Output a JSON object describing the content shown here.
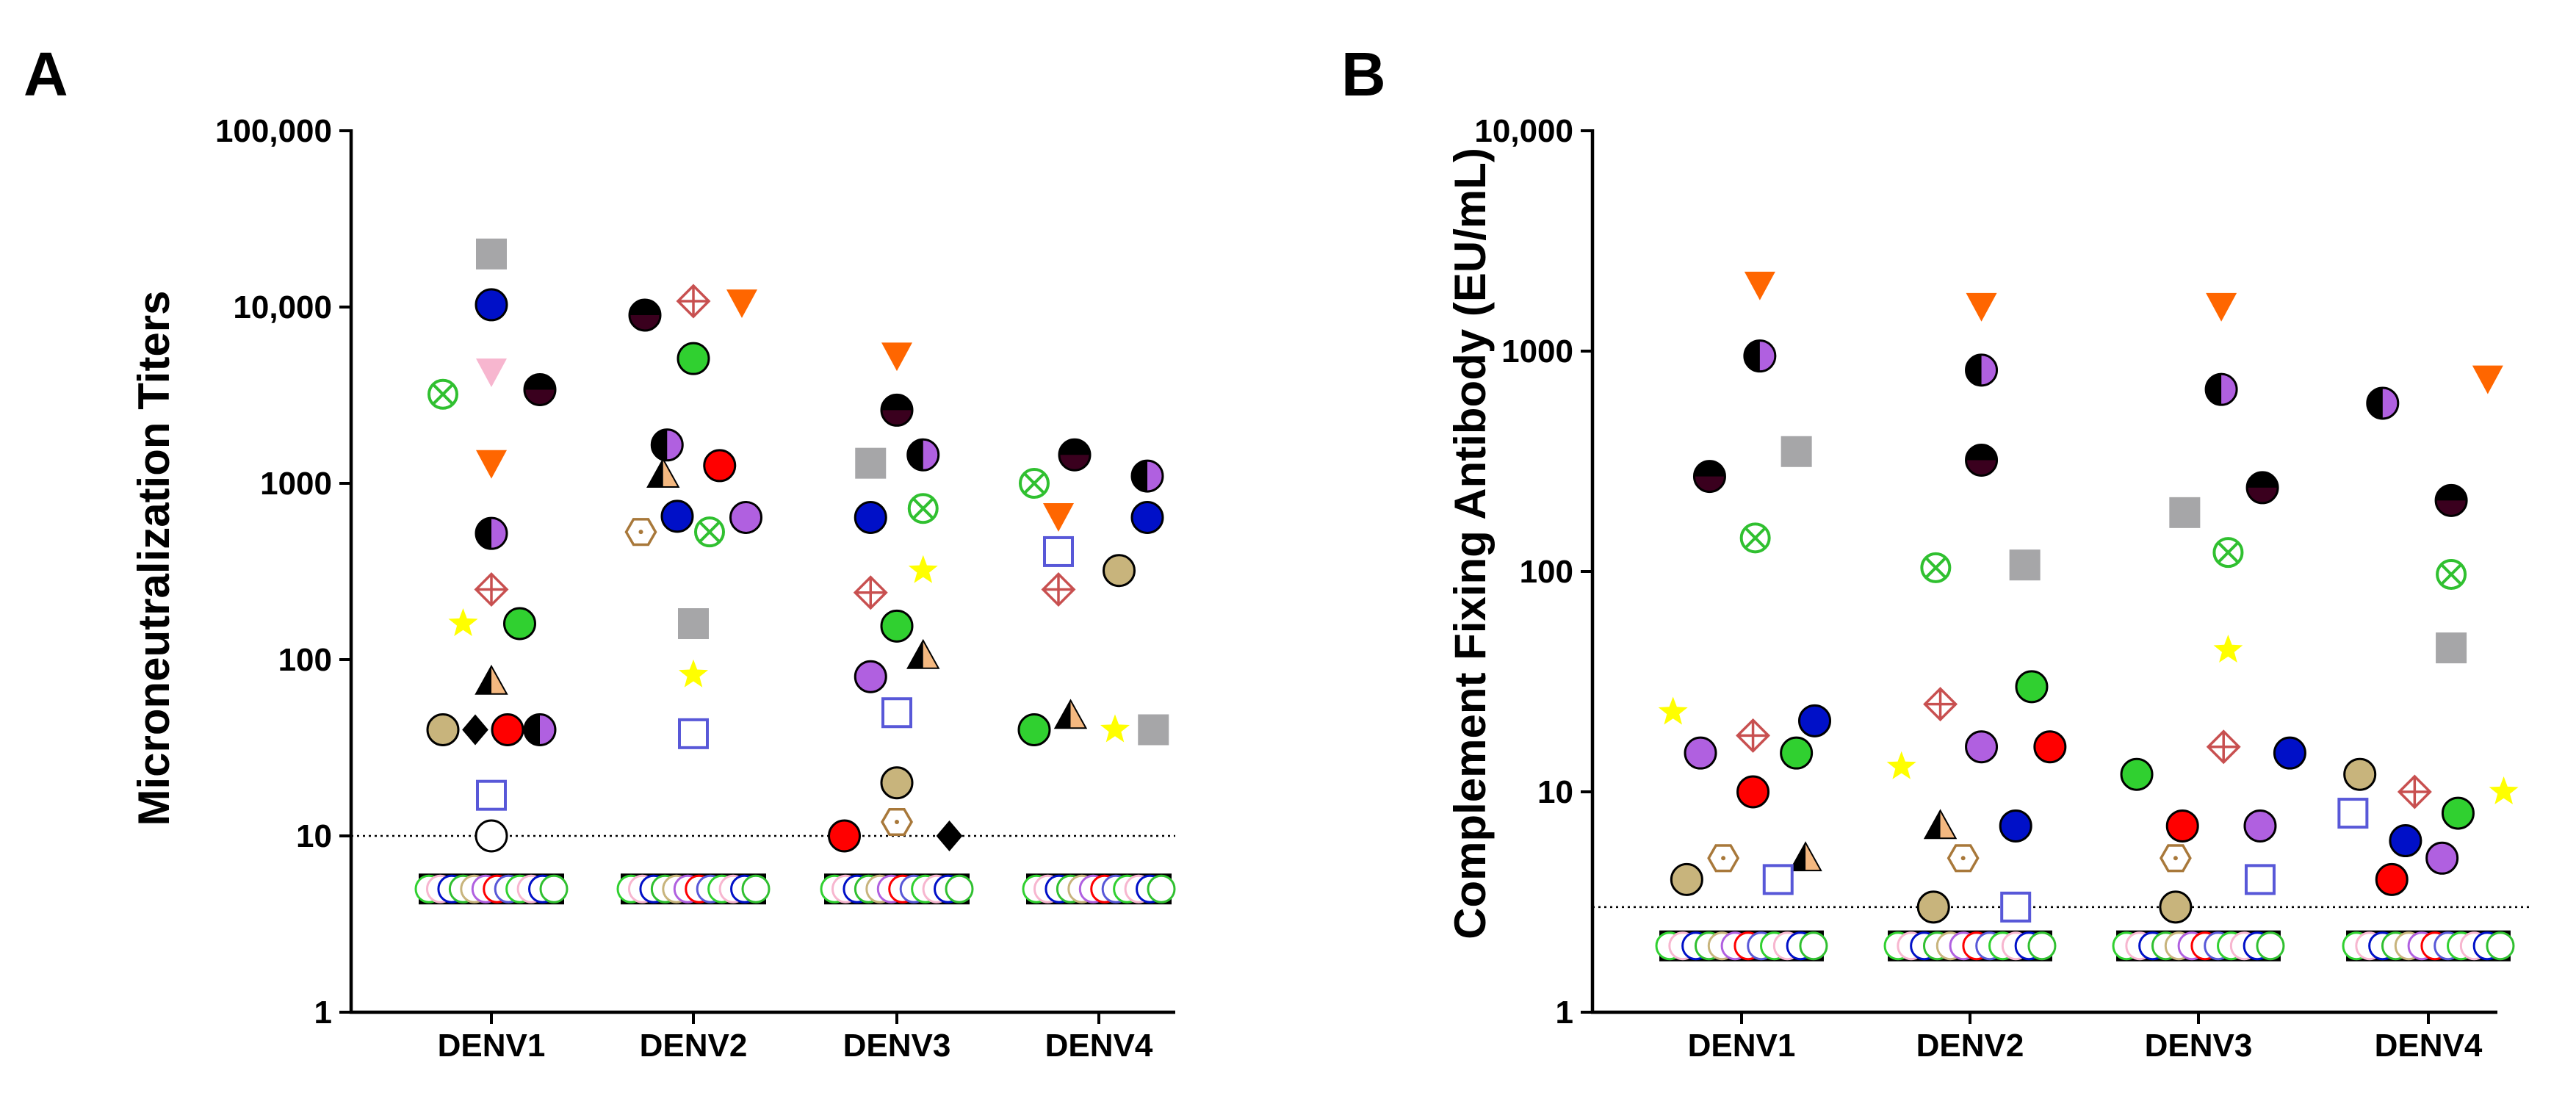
{
  "colors": {
    "orange": "#ff6600",
    "gray": "#a6a6a8",
    "navy": "#0010c8",
    "pink": "#f7b6cf",
    "green": "#30d030",
    "purple": "#b060e0",
    "darkmaroon": "#3a001e",
    "red": "#ff0000",
    "tan": "#c8b47c",
    "yellow": "#ffff00",
    "sqblue": "#5858d8",
    "hexbrown": "#a8783a",
    "diamondred": "#c85050",
    "circlexgreen": "#30c030",
    "triangle": "#f4b880"
  },
  "chart_data": [
    {
      "panel": "A",
      "type": "scatter",
      "ylabel": "Microneutralization Titers",
      "yscale": "log",
      "ylim": [
        1,
        100000
      ],
      "yticks": [
        "1",
        "10",
        "100",
        "1000",
        "10,000",
        "100,000"
      ],
      "categories": [
        "DENV1",
        "DENV2",
        "DENV3",
        "DENV4"
      ],
      "threshold": 10,
      "baseline": 5,
      "points": [
        {
          "cat": 0,
          "dx": 0,
          "y": 20000,
          "m": "square",
          "c": "gray"
        },
        {
          "cat": 0,
          "dx": 0,
          "y": 10300,
          "m": "circle",
          "c": "navy"
        },
        {
          "cat": 0,
          "dx": 0,
          "y": 4300,
          "m": "tridown",
          "c": "pink"
        },
        {
          "cat": 0,
          "dx": -0.24,
          "y": 3200,
          "m": "circlex",
          "c": "circlexgreen"
        },
        {
          "cat": 0,
          "dx": 0.24,
          "y": 3400,
          "m": "halfcircle",
          "c": "darkmaroon"
        },
        {
          "cat": 0,
          "dx": 0,
          "y": 1300,
          "m": "tridown",
          "c": "orange"
        },
        {
          "cat": 0,
          "dx": 0,
          "y": 520,
          "m": "halfcircleV",
          "c": "purple"
        },
        {
          "cat": 0,
          "dx": 0,
          "y": 250,
          "m": "diamondplus",
          "c": "diamondred"
        },
        {
          "cat": 0,
          "dx": -0.14,
          "y": 160,
          "m": "star",
          "c": "yellow"
        },
        {
          "cat": 0,
          "dx": 0.14,
          "y": 160,
          "m": "circle",
          "c": "green"
        },
        {
          "cat": 0,
          "dx": 0,
          "y": 75,
          "m": "halftri",
          "c": "triangle"
        },
        {
          "cat": 0,
          "dx": -0.24,
          "y": 40,
          "m": "circle",
          "c": "tan"
        },
        {
          "cat": 0,
          "dx": -0.08,
          "y": 40,
          "m": "diamond",
          "c": "black"
        },
        {
          "cat": 0,
          "dx": 0.08,
          "y": 40,
          "m": "circle",
          "c": "red"
        },
        {
          "cat": 0,
          "dx": 0.24,
          "y": 40,
          "m": "halfcircleV",
          "c": "purple"
        },
        {
          "cat": 0,
          "dx": 0,
          "y": 17,
          "m": "opensquare",
          "c": "sqblue"
        },
        {
          "cat": 0,
          "dx": 0,
          "y": 10,
          "m": "opencircle",
          "c": "black"
        },
        {
          "cat": 1,
          "dx": -0.24,
          "y": 9000,
          "m": "halfcircle",
          "c": "darkmaroon"
        },
        {
          "cat": 1,
          "dx": 0,
          "y": 10800,
          "m": "diamondplus",
          "c": "diamondred"
        },
        {
          "cat": 1,
          "dx": 0.24,
          "y": 10600,
          "m": "tridown",
          "c": "orange"
        },
        {
          "cat": 1,
          "dx": 0,
          "y": 5100,
          "m": "circle",
          "c": "green"
        },
        {
          "cat": 1,
          "dx": -0.13,
          "y": 1650,
          "m": "halfcircleV",
          "c": "purple"
        },
        {
          "cat": 1,
          "dx": -0.15,
          "y": 1120,
          "m": "halftri",
          "c": "triangle"
        },
        {
          "cat": 1,
          "dx": 0.13,
          "y": 1260,
          "m": "circle",
          "c": "red"
        },
        {
          "cat": 1,
          "dx": -0.08,
          "y": 650,
          "m": "circle",
          "c": "navy"
        },
        {
          "cat": 1,
          "dx": -0.26,
          "y": 530,
          "m": "hexagon",
          "c": "hexbrown"
        },
        {
          "cat": 1,
          "dx": 0.08,
          "y": 530,
          "m": "circlex",
          "c": "circlexgreen"
        },
        {
          "cat": 1,
          "dx": 0.26,
          "y": 640,
          "m": "circle",
          "c": "purple"
        },
        {
          "cat": 1,
          "dx": 0,
          "y": 160,
          "m": "square",
          "c": "gray"
        },
        {
          "cat": 1,
          "dx": 0,
          "y": 82,
          "m": "star",
          "c": "yellow"
        },
        {
          "cat": 1,
          "dx": 0,
          "y": 38,
          "m": "opensquare",
          "c": "sqblue"
        },
        {
          "cat": 2,
          "dx": 0,
          "y": 5300,
          "m": "tridown",
          "c": "orange"
        },
        {
          "cat": 2,
          "dx": 0,
          "y": 2600,
          "m": "halfcircle",
          "c": "darkmaroon"
        },
        {
          "cat": 2,
          "dx": -0.13,
          "y": 1300,
          "m": "square",
          "c": "gray"
        },
        {
          "cat": 2,
          "dx": 0.13,
          "y": 1450,
          "m": "halfcircleV",
          "c": "purple"
        },
        {
          "cat": 2,
          "dx": -0.13,
          "y": 640,
          "m": "circle",
          "c": "navy"
        },
        {
          "cat": 2,
          "dx": 0.13,
          "y": 720,
          "m": "circlex",
          "c": "circlexgreen"
        },
        {
          "cat": 2,
          "dx": 0.13,
          "y": 320,
          "m": "star",
          "c": "yellow"
        },
        {
          "cat": 2,
          "dx": -0.13,
          "y": 240,
          "m": "diamondplus",
          "c": "diamondred"
        },
        {
          "cat": 2,
          "dx": 0,
          "y": 155,
          "m": "circle",
          "c": "green"
        },
        {
          "cat": 2,
          "dx": 0.13,
          "y": 105,
          "m": "halftri",
          "c": "triangle"
        },
        {
          "cat": 2,
          "dx": -0.13,
          "y": 80,
          "m": "circle",
          "c": "purple"
        },
        {
          "cat": 2,
          "dx": 0,
          "y": 50,
          "m": "opensquare",
          "c": "sqblue"
        },
        {
          "cat": 2,
          "dx": 0,
          "y": 20,
          "m": "circle",
          "c": "tan"
        },
        {
          "cat": 2,
          "dx": 0,
          "y": 12,
          "m": "hexagon",
          "c": "hexbrown"
        },
        {
          "cat": 2,
          "dx": -0.26,
          "y": 10,
          "m": "circle",
          "c": "red"
        },
        {
          "cat": 2,
          "dx": 0.26,
          "y": 10,
          "m": "diamond",
          "c": "black"
        },
        {
          "cat": 3,
          "dx": -0.12,
          "y": 1450,
          "m": "halfcircle",
          "c": "darkmaroon"
        },
        {
          "cat": 3,
          "dx": 0.24,
          "y": 1100,
          "m": "halfcircleV",
          "c": "purple"
        },
        {
          "cat": 3,
          "dx": -0.32,
          "y": 1000,
          "m": "circlex",
          "c": "circlexgreen"
        },
        {
          "cat": 3,
          "dx": -0.2,
          "y": 650,
          "m": "tridown",
          "c": "orange"
        },
        {
          "cat": 3,
          "dx": 0.24,
          "y": 640,
          "m": "circle",
          "c": "navy"
        },
        {
          "cat": 3,
          "dx": -0.2,
          "y": 410,
          "m": "opensquare",
          "c": "sqblue"
        },
        {
          "cat": 3,
          "dx": 0.1,
          "y": 320,
          "m": "circle",
          "c": "tan"
        },
        {
          "cat": 3,
          "dx": -0.2,
          "y": 250,
          "m": "diamondplus",
          "c": "diamondred"
        },
        {
          "cat": 3,
          "dx": -0.32,
          "y": 40,
          "m": "circle",
          "c": "green"
        },
        {
          "cat": 3,
          "dx": -0.14,
          "y": 48,
          "m": "halftri",
          "c": "triangle"
        },
        {
          "cat": 3,
          "dx": 0.08,
          "y": 40,
          "m": "star",
          "c": "yellow"
        },
        {
          "cat": 3,
          "dx": 0.27,
          "y": 40,
          "m": "square",
          "c": "gray"
        }
      ]
    },
    {
      "panel": "B",
      "type": "scatter",
      "ylabel": "Complement Fixing Antibody (EU/mL)",
      "yscale": "log",
      "ylim": [
        1,
        10000
      ],
      "yticks": [
        "1",
        "10",
        "100",
        "1000",
        "10,000"
      ],
      "categories": [
        "DENV1",
        "DENV2",
        "DENV3",
        "DENV4"
      ],
      "threshold": 3,
      "baseline": 2,
      "points": [
        {
          "cat": 0,
          "dx": 0.08,
          "y": 2000,
          "m": "tridown",
          "c": "orange"
        },
        {
          "cat": 0,
          "dx": 0.08,
          "y": 950,
          "m": "halfcircleV",
          "c": "purple"
        },
        {
          "cat": 0,
          "dx": -0.14,
          "y": 270,
          "m": "halfcircle",
          "c": "darkmaroon"
        },
        {
          "cat": 0,
          "dx": 0.24,
          "y": 350,
          "m": "square",
          "c": "gray"
        },
        {
          "cat": 0,
          "dx": 0.06,
          "y": 142,
          "m": "circlex",
          "c": "circlexgreen"
        },
        {
          "cat": 0,
          "dx": -0.3,
          "y": 23,
          "m": "star",
          "c": "yellow"
        },
        {
          "cat": 0,
          "dx": 0.05,
          "y": 18,
          "m": "diamondplus",
          "c": "diamondred"
        },
        {
          "cat": 0,
          "dx": 0.32,
          "y": 21,
          "m": "circle",
          "c": "navy"
        },
        {
          "cat": 0,
          "dx": -0.18,
          "y": 15,
          "m": "circle",
          "c": "purple"
        },
        {
          "cat": 0,
          "dx": 0.24,
          "y": 15,
          "m": "circle",
          "c": "green"
        },
        {
          "cat": 0,
          "dx": 0.05,
          "y": 10,
          "m": "circle",
          "c": "red"
        },
        {
          "cat": 0,
          "dx": -0.08,
          "y": 5,
          "m": "hexagon",
          "c": "hexbrown"
        },
        {
          "cat": 0,
          "dx": 0.28,
          "y": 5,
          "m": "halftri",
          "c": "triangle"
        },
        {
          "cat": 0,
          "dx": -0.24,
          "y": 4,
          "m": "circle",
          "c": "tan"
        },
        {
          "cat": 0,
          "dx": 0.16,
          "y": 4,
          "m": "opensquare",
          "c": "sqblue"
        },
        {
          "cat": 1,
          "dx": 0.05,
          "y": 1600,
          "m": "tridown",
          "c": "orange"
        },
        {
          "cat": 1,
          "dx": 0.05,
          "y": 820,
          "m": "halfcircleV",
          "c": "purple"
        },
        {
          "cat": 1,
          "dx": 0.05,
          "y": 320,
          "m": "halfcircle",
          "c": "darkmaroon"
        },
        {
          "cat": 1,
          "dx": -0.15,
          "y": 104,
          "m": "circlex",
          "c": "circlexgreen"
        },
        {
          "cat": 1,
          "dx": 0.24,
          "y": 107,
          "m": "square",
          "c": "gray"
        },
        {
          "cat": 1,
          "dx": 0.27,
          "y": 30,
          "m": "circle",
          "c": "green"
        },
        {
          "cat": 1,
          "dx": -0.13,
          "y": 25,
          "m": "diamondplus",
          "c": "diamondred"
        },
        {
          "cat": 1,
          "dx": 0.05,
          "y": 16,
          "m": "circle",
          "c": "purple"
        },
        {
          "cat": 1,
          "dx": 0.35,
          "y": 16,
          "m": "circle",
          "c": "red"
        },
        {
          "cat": 1,
          "dx": -0.3,
          "y": 13,
          "m": "star",
          "c": "yellow"
        },
        {
          "cat": 1,
          "dx": -0.13,
          "y": 7,
          "m": "halftri",
          "c": "triangle"
        },
        {
          "cat": 1,
          "dx": 0.2,
          "y": 7,
          "m": "circle",
          "c": "navy"
        },
        {
          "cat": 1,
          "dx": -0.03,
          "y": 5,
          "m": "hexagon",
          "c": "hexbrown"
        },
        {
          "cat": 1,
          "dx": -0.16,
          "y": 3,
          "m": "circle",
          "c": "tan"
        },
        {
          "cat": 1,
          "dx": 0.2,
          "y": 3,
          "m": "opensquare",
          "c": "sqblue"
        },
        {
          "cat": 2,
          "dx": 0.1,
          "y": 1600,
          "m": "tridown",
          "c": "orange"
        },
        {
          "cat": 2,
          "dx": 0.1,
          "y": 670,
          "m": "halfcircleV",
          "c": "purple"
        },
        {
          "cat": 2,
          "dx": 0.28,
          "y": 240,
          "m": "halfcircle",
          "c": "darkmaroon"
        },
        {
          "cat": 2,
          "dx": -0.06,
          "y": 185,
          "m": "square",
          "c": "gray"
        },
        {
          "cat": 2,
          "dx": 0.13,
          "y": 122,
          "m": "circlex",
          "c": "circlexgreen"
        },
        {
          "cat": 2,
          "dx": 0.13,
          "y": 44,
          "m": "star",
          "c": "yellow"
        },
        {
          "cat": 2,
          "dx": 0.11,
          "y": 16,
          "m": "diamondplus",
          "c": "diamondred"
        },
        {
          "cat": 2,
          "dx": 0.4,
          "y": 15,
          "m": "circle",
          "c": "navy"
        },
        {
          "cat": 2,
          "dx": -0.27,
          "y": 12,
          "m": "circle",
          "c": "green"
        },
        {
          "cat": 2,
          "dx": -0.07,
          "y": 7,
          "m": "circle",
          "c": "red"
        },
        {
          "cat": 2,
          "dx": 0.27,
          "y": 7,
          "m": "circle",
          "c": "purple"
        },
        {
          "cat": 2,
          "dx": -0.1,
          "y": 5,
          "m": "hexagon",
          "c": "hexbrown"
        },
        {
          "cat": 2,
          "dx": 0.27,
          "y": 4,
          "m": "opensquare",
          "c": "sqblue"
        },
        {
          "cat": 2,
          "dx": -0.1,
          "y": 3,
          "m": "circle",
          "c": "tan"
        },
        {
          "cat": 3,
          "dx": 0.26,
          "y": 750,
          "m": "tridown",
          "c": "orange"
        },
        {
          "cat": 3,
          "dx": -0.2,
          "y": 580,
          "m": "halfcircleV",
          "c": "purple"
        },
        {
          "cat": 3,
          "dx": 0.1,
          "y": 210,
          "m": "halfcircle",
          "c": "darkmaroon"
        },
        {
          "cat": 3,
          "dx": 0.1,
          "y": 97,
          "m": "circlex",
          "c": "circlexgreen"
        },
        {
          "cat": 3,
          "dx": 0.1,
          "y": 45,
          "m": "square",
          "c": "gray"
        },
        {
          "cat": 3,
          "dx": -0.3,
          "y": 12,
          "m": "circle",
          "c": "tan"
        },
        {
          "cat": 3,
          "dx": -0.06,
          "y": 10,
          "m": "diamondplus",
          "c": "diamondred"
        },
        {
          "cat": 3,
          "dx": 0.33,
          "y": 10,
          "m": "star",
          "c": "yellow"
        },
        {
          "cat": 3,
          "dx": -0.33,
          "y": 8,
          "m": "opensquare",
          "c": "sqblue"
        },
        {
          "cat": 3,
          "dx": 0.13,
          "y": 8,
          "m": "circle",
          "c": "green"
        },
        {
          "cat": 3,
          "dx": -0.1,
          "y": 6,
          "m": "circle",
          "c": "navy"
        },
        {
          "cat": 3,
          "dx": 0.06,
          "y": 5,
          "m": "circle",
          "c": "purple"
        },
        {
          "cat": 3,
          "dx": -0.16,
          "y": 4,
          "m": "circle",
          "c": "red"
        }
      ]
    }
  ]
}
